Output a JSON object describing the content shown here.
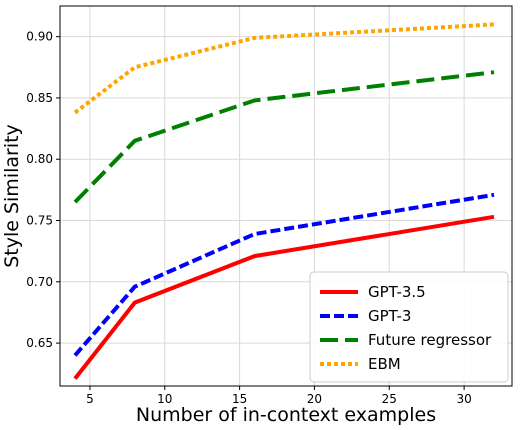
{
  "chart_data": {
    "type": "line",
    "title": "",
    "xlabel": "Number of in-context examples",
    "ylabel": "Style Similarity",
    "xlim": [
      3,
      33.2
    ],
    "ylim": [
      0.615,
      0.925
    ],
    "xticks": [
      5,
      10,
      15,
      20,
      25,
      30
    ],
    "yticks": [
      0.65,
      0.7,
      0.75,
      0.8,
      0.85,
      0.9
    ],
    "xtick_labels": [
      "5",
      "10",
      "15",
      "20",
      "25",
      "30"
    ],
    "ytick_labels": [
      "0.65",
      "0.70",
      "0.75",
      "0.80",
      "0.85",
      "0.90"
    ],
    "grid": true,
    "legend_position": "lower right",
    "x": [
      4,
      8,
      16,
      32
    ],
    "series": [
      {
        "name": "GPT-3.5",
        "values": [
          0.621,
          0.683,
          0.721,
          0.753
        ],
        "color": "#ff0000",
        "dash": "solid"
      },
      {
        "name": "GPT-3",
        "values": [
          0.64,
          0.696,
          0.739,
          0.771
        ],
        "color": "#0000ff",
        "dash": "dashed"
      },
      {
        "name": "Future regressor",
        "values": [
          0.765,
          0.815,
          0.848,
          0.871
        ],
        "color": "#008000",
        "dash": "longdash"
      },
      {
        "name": "EBM",
        "values": [
          0.838,
          0.875,
          0.899,
          0.91
        ],
        "color": "#ffa500",
        "dash": "dotted"
      }
    ]
  }
}
